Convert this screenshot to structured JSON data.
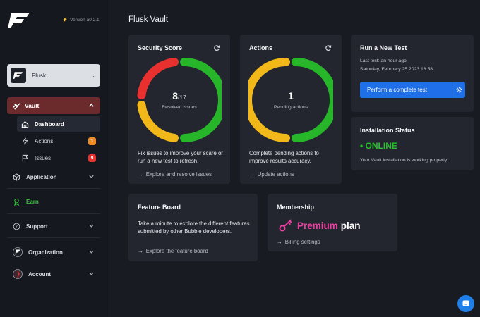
{
  "sidebar": {
    "version": "Version a0.2.1",
    "org_name": "Flusk",
    "vault_label": "Vault",
    "items": [
      {
        "label": "Dashboard"
      },
      {
        "label": "Actions",
        "badge": "1"
      },
      {
        "label": "Issues",
        "badge": "9"
      }
    ],
    "application_label": "Application",
    "earn_label": "Earn",
    "support_label": "Support",
    "organization_label": "Organization",
    "account_label": "Account"
  },
  "main": {
    "title": "Flusk Vault",
    "security": {
      "title": "Security Score",
      "score": "8",
      "total": "/17",
      "sub": "Resolved issues",
      "desc": "Fix issues to improve your scare or run a new test to refresh.",
      "link": "Explore and resolve issues"
    },
    "actions": {
      "title": "Actions",
      "count": "1",
      "sub": "Pending actions",
      "desc": "Complete pending actions to improve results accuracy.",
      "link": "Update actions"
    },
    "run_test": {
      "title": "Run a New Test",
      "last": "Last test: an hour ago",
      "date": "Saturday, February 25 2023 18:58",
      "button": "Perform a complete test"
    },
    "install": {
      "title": "Installation Status",
      "status": "• ONLINE",
      "desc": "Your Vault installation is working properly."
    },
    "feature": {
      "title": "Feature Board",
      "desc": "Take a minute to explore the different features submitted by other Bubble developers.",
      "link": "Explore the feature board"
    },
    "membership": {
      "title": "Membership",
      "plan_word": "Premium",
      "plan_suffix": "plan",
      "link": "Billing settings"
    }
  },
  "colors": {
    "red": "#e8312f",
    "yellow": "#f2b81a",
    "green": "#27b52a",
    "accent_blue": "#1f6fe8",
    "vault_active": "#6b2a2c",
    "pink": "#ee3fa1"
  },
  "icons": [
    "flusk-logo",
    "bolt-icon",
    "chevron-down-icon",
    "chevron-up-icon",
    "vault-icon",
    "home-icon",
    "lightning-icon",
    "flag-icon",
    "cube-icon",
    "award-icon",
    "help-circle-icon",
    "refresh-icon",
    "arrow-right-icon",
    "gear-icon",
    "key-icon",
    "chat-icon"
  ]
}
